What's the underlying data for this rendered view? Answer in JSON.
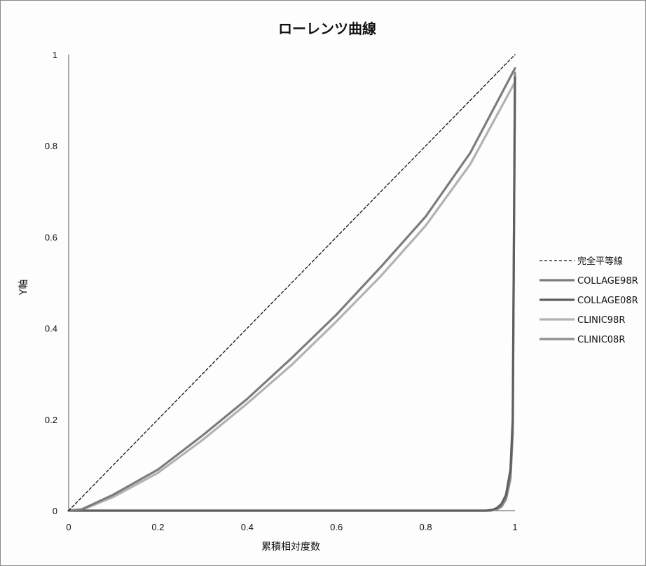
{
  "chart_data": {
    "type": "line",
    "title": "ローレンツ曲線",
    "xlabel": "累積相対度数",
    "ylabel": "Y軸",
    "xlim": [
      0,
      1
    ],
    "ylim": [
      0,
      1
    ],
    "x_ticks": [
      "0",
      "0.2",
      "0.4",
      "0.6",
      "0.8",
      "1"
    ],
    "y_ticks": [
      "0",
      "0.2",
      "0.4",
      "0.6",
      "0.8",
      "1"
    ],
    "grid": false,
    "legend_position": "right",
    "series": [
      {
        "name": "完全平等線",
        "color": "#111111",
        "style": "dashed",
        "x": [
          0,
          1
        ],
        "y": [
          0,
          1
        ]
      },
      {
        "name": "COLLAGE98R",
        "color": "#7c7c7c",
        "style": "solid",
        "x": [
          0,
          0.03,
          0.1,
          0.2,
          0.3,
          0.4,
          0.5,
          0.6,
          0.7,
          0.8,
          0.9,
          1
        ],
        "y": [
          0,
          0.003,
          0.035,
          0.09,
          0.165,
          0.245,
          0.335,
          0.43,
          0.535,
          0.645,
          0.785,
          0.97
        ]
      },
      {
        "name": "COLLAGE08R",
        "color": "#5f5f5f",
        "style": "solid",
        "x": [
          0,
          0.935,
          0.95,
          0.96,
          0.97,
          0.98,
          0.99,
          0.995,
          1
        ],
        "y": [
          0,
          0,
          0.002,
          0.006,
          0.015,
          0.035,
          0.09,
          0.2,
          0.95
        ]
      },
      {
        "name": "CLINIC98R",
        "color": "#b2b2b2",
        "style": "solid",
        "x": [
          0,
          0.03,
          0.1,
          0.2,
          0.3,
          0.4,
          0.5,
          0.6,
          0.7,
          0.8,
          0.9,
          1
        ],
        "y": [
          0,
          0.002,
          0.03,
          0.083,
          0.155,
          0.235,
          0.32,
          0.415,
          0.515,
          0.625,
          0.76,
          0.94
        ]
      },
      {
        "name": "CLINIC08R",
        "color": "#8e8e8e",
        "style": "solid",
        "x": [
          0,
          0.945,
          0.96,
          0.97,
          0.98,
          0.99,
          0.995,
          1
        ],
        "y": [
          0,
          0,
          0.003,
          0.009,
          0.025,
          0.07,
          0.17,
          0.96
        ]
      }
    ]
  }
}
